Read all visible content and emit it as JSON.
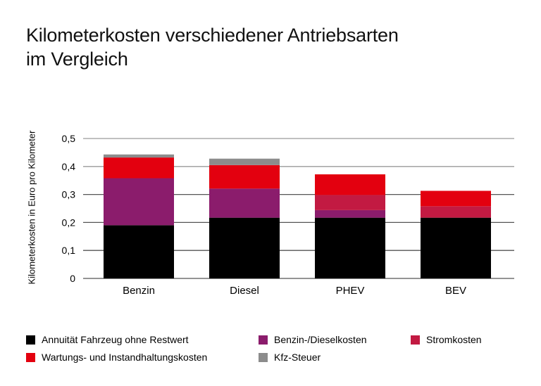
{
  "chart_data": {
    "type": "bar",
    "stacked": true,
    "title": "Kilometerkosten verschiedener Antriebsarten im Vergleich",
    "title_lines": [
      "Kilometerkosten verschiedener Antriebsarten",
      "im Vergleich"
    ],
    "xlabel": "",
    "ylabel": "Kilometerkosten in Euro pro Kilometer",
    "ylim": [
      0,
      0.5
    ],
    "yticks": [
      "0",
      "0,1",
      "0,2",
      "0,3",
      "0,4",
      "0,5"
    ],
    "grid": true,
    "legend_position": "bottom",
    "categories": [
      "Benzin",
      "Diesel",
      "PHEV",
      "BEV"
    ],
    "series": [
      {
        "name": "Annuität Fahrzeug ohne Restwert",
        "color": "#000000",
        "values": [
          0.19,
          0.217,
          0.217,
          0.217
        ]
      },
      {
        "name": "Benzin-/Dieselkosten",
        "color": "#8b1c6c",
        "values": [
          0.168,
          0.104,
          0.027,
          0
        ]
      },
      {
        "name": "Stromkosten",
        "color": "#c21a42",
        "values": [
          0,
          0,
          0.054,
          0.041
        ]
      },
      {
        "name": "Wartungs- und Instandhaltungskosten",
        "color": "#e3000f",
        "values": [
          0.074,
          0.084,
          0.074,
          0.055
        ]
      },
      {
        "name": "Kfz-Steuer",
        "color": "#8c8c8c",
        "values": [
          0.011,
          0.023,
          0,
          0
        ]
      }
    ]
  }
}
